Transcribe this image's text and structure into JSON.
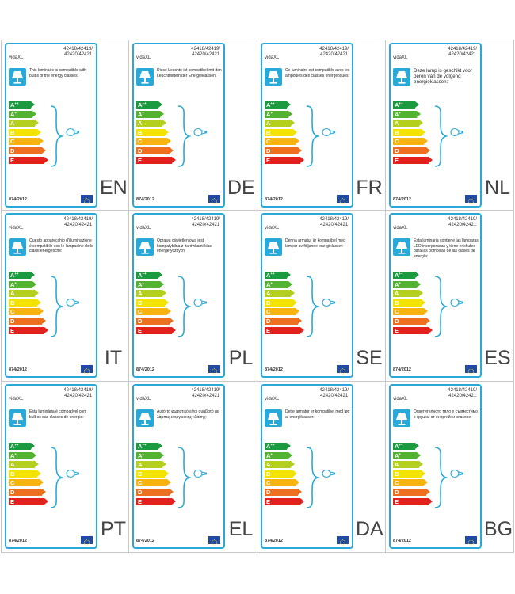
{
  "brand": "vidaXL",
  "models": "42418/42419/\n42420/42421",
  "regulation": "874/2012",
  "energy_classes": [
    {
      "letter": "A",
      "plus": "++",
      "color": "#1c9a3f"
    },
    {
      "letter": "A",
      "plus": "+",
      "color": "#53b232"
    },
    {
      "letter": "A",
      "plus": "",
      "color": "#b4cf1e"
    },
    {
      "letter": "B",
      "plus": "",
      "color": "#f2e300"
    },
    {
      "letter": "C",
      "plus": "",
      "color": "#f7b30f"
    },
    {
      "letter": "D",
      "plus": "",
      "color": "#ee6f1e"
    },
    {
      "letter": "E",
      "plus": "",
      "color": "#e3211c"
    }
  ],
  "colors": {
    "frame": "#29a9d8",
    "eu_flag": "#1f4aa8",
    "eu_stars": "#ffdd00"
  },
  "labels": [
    {
      "lang": "EN",
      "text": "This luminaire is compatible with bulbs of the energy classes:",
      "large": false
    },
    {
      "lang": "DE",
      "text": "Diese Leuchte ist kompatibel mit den Leuchtmitteln der Energieklassen:",
      "large": false
    },
    {
      "lang": "FR",
      "text": "Ce luminaire est compatible avec les ampoules des classes énergétiques:",
      "large": false
    },
    {
      "lang": "NL",
      "text": "Deze lamp is geschikt voor peren van de volgend energieklassen:",
      "large": true
    },
    {
      "lang": "IT",
      "text": "Questo apparecchio d'illuminazione è compatibile con le lampadine delle classi energetiche:",
      "large": false
    },
    {
      "lang": "PL",
      "text": "Oprawa oświetleniowa jest kompatybilna z żarówkami klas energetycznych",
      "large": false
    },
    {
      "lang": "SE",
      "text": "Denna armatur är kompatibel med lampor av följande energiklasser:",
      "large": false
    },
    {
      "lang": "ES",
      "text": "Esta luminaria contiene las lámparas LED incorporadas y tiene enchufes para las bombillas de las clases de energía:",
      "large": false
    },
    {
      "lang": "PT",
      "text": "Esta luminária é compatível com bulbos das classes de energia:",
      "large": false
    },
    {
      "lang": "EL",
      "text": "Αυτό το φωτιστικό είναι συμβατό με λάμπες ενεργειακής κλάσης:",
      "large": false
    },
    {
      "lang": "DA",
      "text": "Dette armatur er kompatibel med løg af energiklasser:",
      "large": false
    },
    {
      "lang": "BG",
      "text": "Осветителното тяло е съвместимо с крушки от енергийни класове:",
      "large": false
    }
  ]
}
